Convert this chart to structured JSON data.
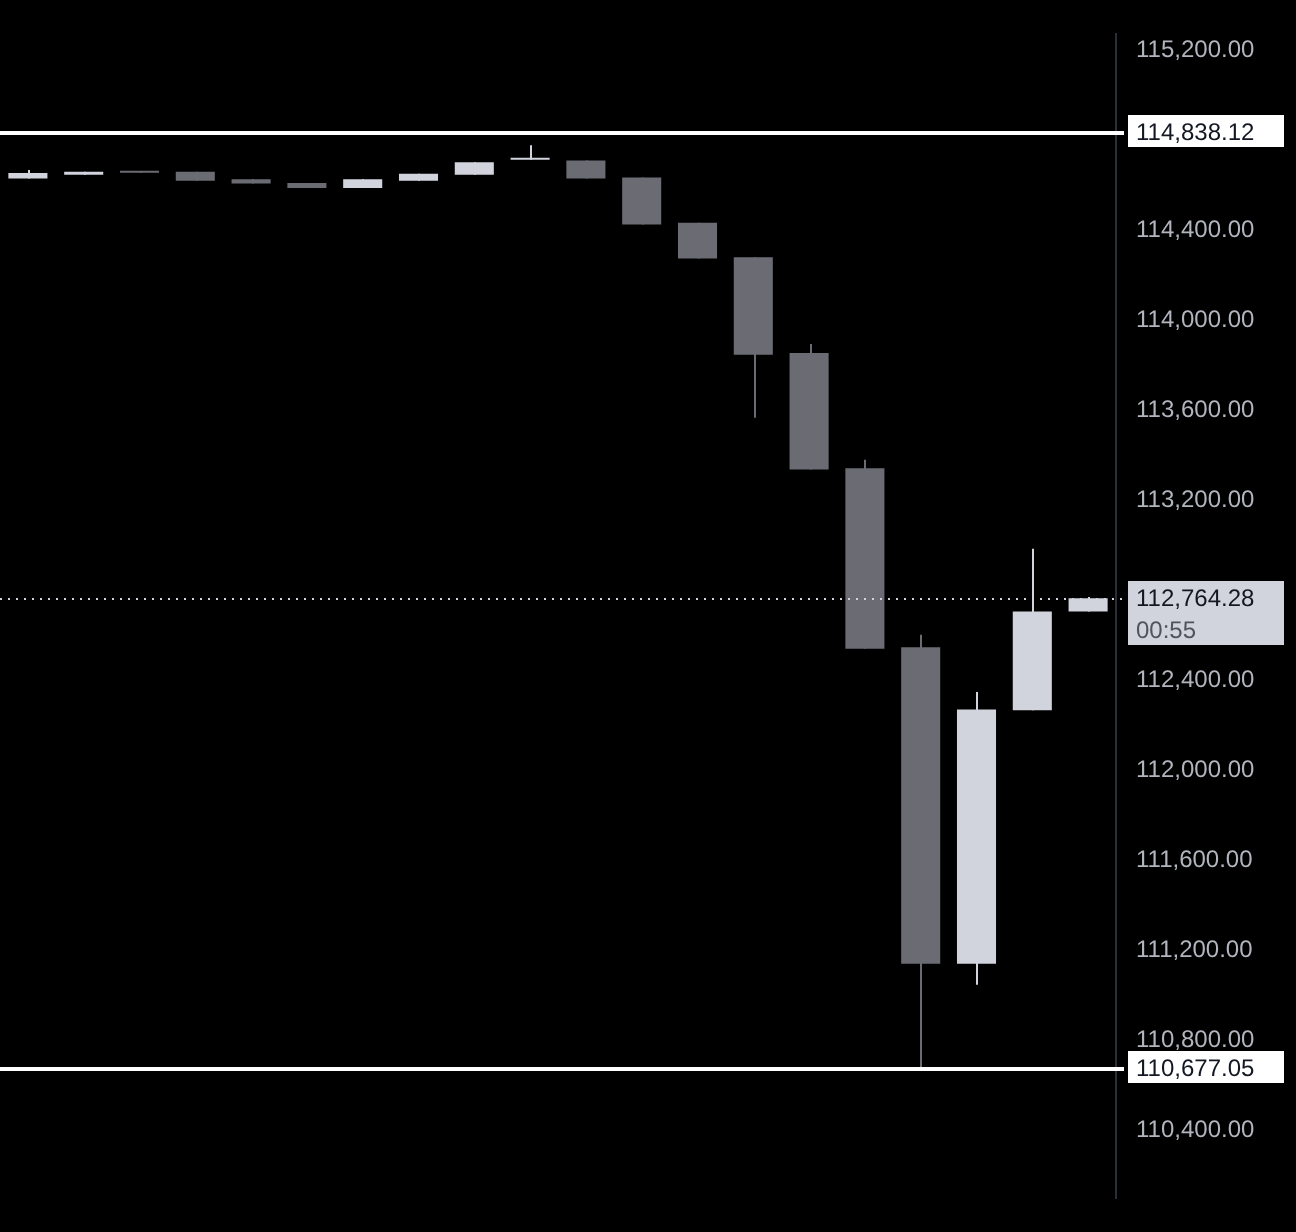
{
  "chart_data": {
    "type": "candlestick",
    "categories": [
      null,
      null,
      null,
      null,
      null,
      null,
      null,
      null,
      null,
      null,
      null,
      null,
      null,
      null,
      null,
      null,
      null,
      null,
      null,
      null
    ],
    "ohlc": [
      [
        114629,
        114667,
        114629,
        114654
      ],
      [
        114646,
        114660,
        114646,
        114660
      ],
      [
        114655,
        114660,
        114655,
        114660
      ],
      [
        114660,
        114660,
        114620,
        114620
      ],
      [
        114626,
        114626,
        114607,
        114607
      ],
      [
        114609,
        114609,
        114587,
        114587
      ],
      [
        114587,
        114626,
        114587,
        114626
      ],
      [
        114620,
        114651,
        114620,
        114651
      ],
      [
        114646,
        114702,
        114646,
        114702
      ],
      [
        114713,
        114777,
        114713,
        114715
      ],
      [
        114710,
        114710,
        114629,
        114629
      ],
      [
        114634,
        114634,
        114425,
        114425
      ],
      [
        114433,
        114433,
        114274,
        114274
      ],
      [
        114280,
        114280,
        113566,
        113846
      ],
      [
        113854,
        113894,
        113336,
        113336
      ],
      [
        113342,
        113379,
        112539,
        112539
      ],
      [
        112546,
        112602,
        110677,
        111139
      ],
      [
        111139,
        112347,
        111046,
        112269
      ],
      [
        112266,
        112984,
        112266,
        112705
      ],
      [
        112705,
        112770,
        112705,
        112764
      ]
    ],
    "colors": [
      "#d1d4dc",
      "#d1d4dc",
      "#6b6c73",
      "#6b6c73",
      "#6b6c73",
      "#6b6c73",
      "#d1d4dc",
      "#d1d4dc",
      "#d1d4dc",
      "#d1d4dc",
      "#6b6c73",
      "#6b6c73",
      "#6b6c73",
      "#6b6c73",
      "#6b6c73",
      "#6b6c73",
      "#6b6c73",
      "#d1d4dc",
      "#d1d4dc",
      "#d1d4dc"
    ],
    "ylim": [
      110100,
      115270
    ],
    "yticks": [
      {
        "value": 110400,
        "label": "110,400.00"
      },
      {
        "value": 110800,
        "label": "110,800.00"
      },
      {
        "value": 111200,
        "label": "111,200.00"
      },
      {
        "value": 111600,
        "label": "111,600.00"
      },
      {
        "value": 112000,
        "label": "112,000.00"
      },
      {
        "value": 112400,
        "label": "112,400.00"
      },
      {
        "value": 113200,
        "label": "113,200.00"
      },
      {
        "value": 113600,
        "label": "113,600.00"
      },
      {
        "value": 114000,
        "label": "114,000.00"
      },
      {
        "value": 114400,
        "label": "114,400.00"
      },
      {
        "value": 115200,
        "label": "115,200.00"
      }
    ],
    "ref_lines": [
      {
        "axis": "y",
        "value": 114838.12,
        "label": "114,838.12",
        "color": "#ffffff",
        "line_style": "solid"
      },
      {
        "axis": "y",
        "value": 110677.05,
        "label": "110,677.05",
        "color": "#ffffff",
        "line_style": "solid"
      },
      {
        "axis": "y",
        "value": 112764.28,
        "label": "112,764.28",
        "color": "#d1d4dc",
        "line_style": "dotted"
      }
    ],
    "annotations": [
      "00:55"
    ],
    "legend": false,
    "tick_labels": "y"
  }
}
